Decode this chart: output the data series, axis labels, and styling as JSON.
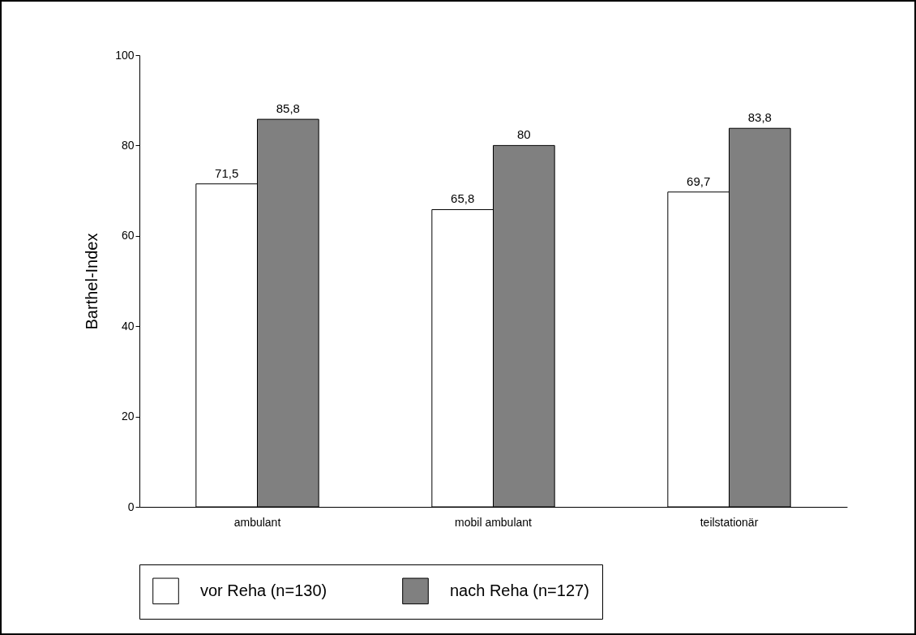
{
  "chart_data": {
    "type": "bar",
    "ylabel": "Barthel-Index",
    "categories": [
      "ambulant",
      "mobil ambulant",
      "teilstationär"
    ],
    "series": [
      {
        "name": "vor Reha (n=130)",
        "color": "#ffffff",
        "values": [
          71.5,
          65.8,
          69.7
        ],
        "value_labels": [
          "71,5",
          "65,8",
          "69,7"
        ]
      },
      {
        "name": "nach Reha (n=127)",
        "color": "#808080",
        "values": [
          85.8,
          80,
          83.8
        ],
        "value_labels": [
          "85,8",
          "80",
          "83,8"
        ]
      }
    ],
    "ylim": [
      0,
      100
    ],
    "yticks": [
      0,
      20,
      40,
      60,
      80,
      100
    ],
    "legend": "bottom"
  }
}
